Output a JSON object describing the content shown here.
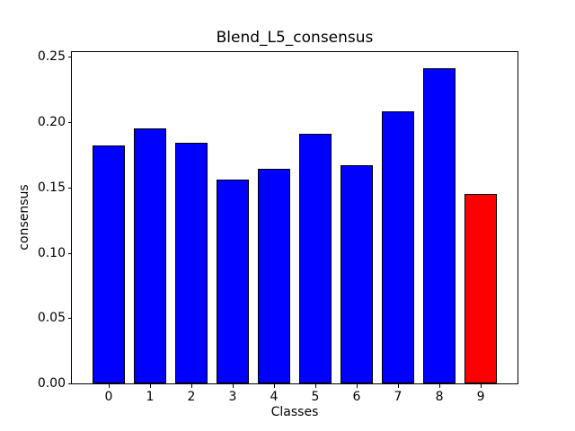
{
  "figure": {
    "background_color": "#ffffff"
  },
  "chart_data": {
    "type": "bar",
    "title": "Blend_L5_consensus",
    "xlabel": "Classes",
    "ylabel": "consensus",
    "categories": [
      "0",
      "1",
      "2",
      "3",
      "4",
      "5",
      "6",
      "7",
      "8",
      "9"
    ],
    "values": [
      0.182,
      0.195,
      0.184,
      0.156,
      0.164,
      0.191,
      0.167,
      0.208,
      0.241,
      0.145
    ],
    "bar_colors": [
      "#0000ff",
      "#0000ff",
      "#0000ff",
      "#0000ff",
      "#0000ff",
      "#0000ff",
      "#0000ff",
      "#0000ff",
      "#0000ff",
      "#ff0000"
    ],
    "bar_edge_color": "#000000",
    "highlighted_category": "9",
    "highlight_color": "#ff0000",
    "ylim": [
      0,
      0.2535
    ],
    "yticks": [
      0.0,
      0.05,
      0.1,
      0.15,
      0.2,
      0.25
    ],
    "ytick_labels": [
      "0.00",
      "0.05",
      "0.10",
      "0.15",
      "0.20",
      "0.25"
    ],
    "grid": false,
    "legend": null
  }
}
